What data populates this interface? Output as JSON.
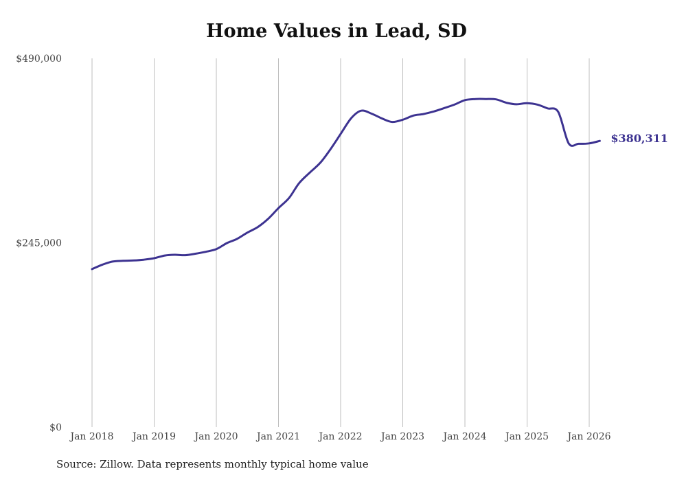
{
  "chart_data": {
    "type": "line",
    "title": "Home Values in Lead, SD",
    "source": "Source: Zillow. Data represents monthly typical home value",
    "ylim": [
      0,
      490000
    ],
    "y_ticks": [
      {
        "value": 0,
        "label": "$0"
      },
      {
        "value": 245000,
        "label": "$245,000"
      },
      {
        "value": 490000,
        "label": "$490,000"
      }
    ],
    "x_ticks": [
      {
        "value": 2018.0,
        "label": "Jan 2018"
      },
      {
        "value": 2019.0,
        "label": "Jan 2019"
      },
      {
        "value": 2020.0,
        "label": "Jan 2020"
      },
      {
        "value": 2021.0,
        "label": "Jan 2021"
      },
      {
        "value": 2022.0,
        "label": "Jan 2022"
      },
      {
        "value": 2023.0,
        "label": "Jan 2023"
      },
      {
        "value": 2024.0,
        "label": "Jan 2024"
      },
      {
        "value": 2025.0,
        "label": "Jan 2025"
      },
      {
        "value": 2026.0,
        "label": "Jan 2026"
      }
    ],
    "xlim": [
      2018.0,
      2026.0
    ],
    "grid": "vertical",
    "series": [
      {
        "name": "Typical home value",
        "color": "#3d3391",
        "end_label": "$380,311",
        "x": [
          2018.0,
          2018.17,
          2018.33,
          2018.5,
          2018.67,
          2018.83,
          2019.0,
          2019.17,
          2019.33,
          2019.5,
          2019.67,
          2019.83,
          2020.0,
          2020.17,
          2020.33,
          2020.5,
          2020.67,
          2020.83,
          2021.0,
          2021.17,
          2021.33,
          2021.5,
          2021.67,
          2021.83,
          2022.0,
          2022.17,
          2022.33,
          2022.5,
          2022.67,
          2022.83,
          2023.0,
          2023.17,
          2023.33,
          2023.5,
          2023.67,
          2023.83,
          2024.0,
          2024.17,
          2024.33,
          2024.5,
          2024.67,
          2024.83,
          2025.0,
          2025.17,
          2025.33,
          2025.5,
          2025.67,
          2025.83,
          2026.0,
          2026.17
        ],
        "values": [
          210000,
          216000,
          220000,
          221000,
          221500,
          222500,
          224500,
          228000,
          229000,
          228500,
          230500,
          233000,
          236500,
          244500,
          250000,
          258500,
          266000,
          276500,
          291000,
          304500,
          324000,
          338000,
          351000,
          368500,
          389500,
          410500,
          420500,
          416500,
          410000,
          405500,
          408500,
          414000,
          416000,
          419500,
          424000,
          428500,
          434500,
          436000,
          436000,
          435500,
          431000,
          429000,
          430500,
          428500,
          423500,
          419000,
          377000,
          376500,
          377000,
          380311
        ]
      }
    ]
  }
}
